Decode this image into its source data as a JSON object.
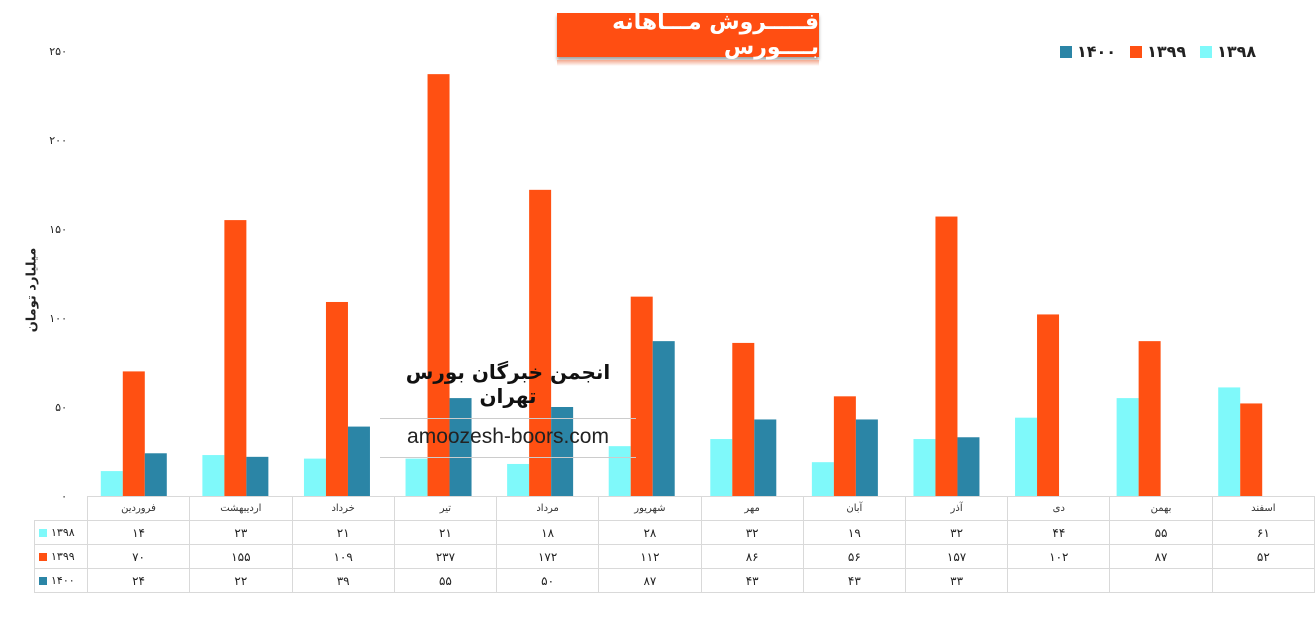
{
  "chart_data": {
    "type": "bar",
    "title": "فـــــروش مـــاهانه بــــورس",
    "ylabel": "میلیارد تومان",
    "xlabel": "",
    "ylim": [
      0,
      250
    ],
    "yticks": [
      "۰",
      "۵۰",
      "۱۰۰",
      "۱۵۰",
      "۲۰۰",
      "۲۵۰"
    ],
    "categories": [
      "فروردین",
      "اردیبهشت",
      "خرداد",
      "تیر",
      "مرداد",
      "شهریور",
      "مهر",
      "آبان",
      "آذر",
      "دی",
      "بهمن",
      "اسفند"
    ],
    "series": [
      {
        "name": "۱۳۹۸",
        "color": "#7ff9fa",
        "values": [
          14,
          23,
          21,
          21,
          18,
          28,
          32,
          19,
          32,
          44,
          55,
          61
        ],
        "labels": [
          "۱۴",
          "۲۳",
          "۲۱",
          "۲۱",
          "۱۸",
          "۲۸",
          "۳۲",
          "۱۹",
          "۳۲",
          "۴۴",
          "۵۵",
          "۶۱"
        ]
      },
      {
        "name": "۱۳۹۹",
        "color": "#ff5012",
        "values": [
          70,
          155,
          109,
          237,
          172,
          112,
          86,
          56,
          157,
          102,
          87,
          52
        ],
        "labels": [
          "۷۰",
          "۱۵۵",
          "۱۰۹",
          "۲۳۷",
          "۱۷۲",
          "۱۱۲",
          "۸۶",
          "۵۶",
          "۱۵۷",
          "۱۰۲",
          "۸۷",
          "۵۲"
        ]
      },
      {
        "name": "۱۴۰۰",
        "color": "#2b85a6",
        "values": [
          24,
          22,
          39,
          55,
          50,
          87,
          43,
          43,
          33,
          null,
          null,
          null
        ],
        "labels": [
          "۲۴",
          "۲۲",
          "۳۹",
          "۵۵",
          "۵۰",
          "۸۷",
          "۴۳",
          "۴۳",
          "۳۳",
          "",
          "",
          ""
        ]
      }
    ],
    "legend_position": "top-right",
    "grid": false,
    "data_table": true
  },
  "watermark": {
    "title": "انجمن خبرگان بورس تهران",
    "url": "amoozesh-boors.com"
  }
}
